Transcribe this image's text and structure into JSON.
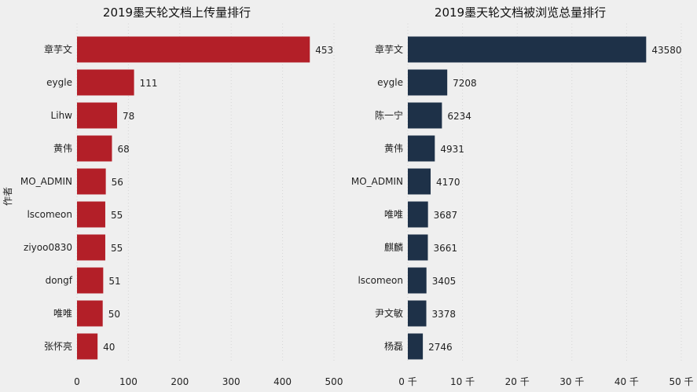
{
  "chart_data": [
    {
      "type": "bar",
      "orientation": "horizontal",
      "title": "2019墨天轮文档上传量排行",
      "ylabel": "作者",
      "xlabel": "",
      "categories": [
        "章芋文",
        "eygle",
        "Lihw",
        "黄伟",
        "MO_ADMIN",
        "lscomeon",
        "ziyoo0830",
        "dongf",
        "唯唯",
        "张怀亮"
      ],
      "values": [
        453,
        111,
        78,
        68,
        56,
        55,
        55,
        51,
        50,
        40
      ],
      "xlim": [
        0,
        500
      ],
      "xticks": [
        0,
        100,
        200,
        300,
        400,
        500
      ],
      "xtick_labels": [
        "0",
        "100",
        "200",
        "300",
        "400",
        "500"
      ],
      "color": "#b31f28",
      "grid": "vertical dotted"
    },
    {
      "type": "bar",
      "orientation": "horizontal",
      "title": "2019墨天轮文档被浏览总量排行",
      "xlabel": "",
      "categories": [
        "章芋文",
        "eygle",
        "陈一宁",
        "黄伟",
        "MO_ADMIN",
        "唯唯",
        "麒麟",
        "lscomeon",
        "尹文敏",
        "杨磊"
      ],
      "values": [
        43580,
        7208,
        6234,
        4931,
        4170,
        3687,
        3661,
        3405,
        3378,
        2746
      ],
      "xlim": [
        0,
        50000
      ],
      "xticks": [
        0,
        10000,
        20000,
        30000,
        40000,
        50000
      ],
      "xtick_labels": [
        "0 千",
        "10 千",
        "20 千",
        "30 千",
        "40 千",
        "50 千"
      ],
      "color": "#1e3148",
      "grid": "vertical dotted"
    }
  ]
}
